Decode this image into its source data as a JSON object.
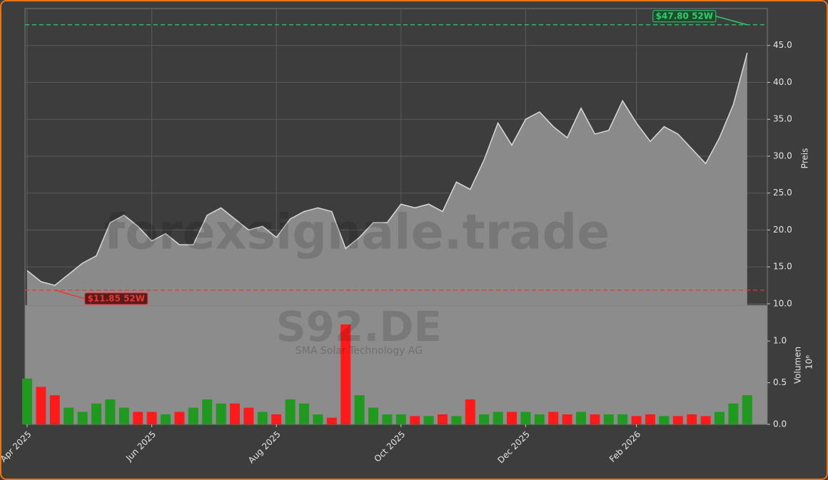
{
  "chart_data": {
    "type": "stock",
    "watermark": "forexsignale.trade",
    "symbol": "S92.DE",
    "company": "SMA Solar Technology AG",
    "y_label": "Preis",
    "y2_label": "Volumen",
    "y2_multiplier": "10⁶",
    "categories": [
      "Apr 2025",
      null,
      null,
      null,
      null,
      null,
      null,
      null,
      null,
      "Jun 2025",
      null,
      null,
      null,
      null,
      null,
      null,
      null,
      null,
      "Aug 2025",
      null,
      null,
      null,
      null,
      null,
      null,
      null,
      null,
      "Oct 2025",
      null,
      null,
      null,
      null,
      null,
      null,
      null,
      null,
      "Dec 2025",
      null,
      null,
      null,
      null,
      null,
      null,
      null,
      "Feb 2026",
      null,
      null,
      null,
      null,
      null,
      null,
      null,
      null
    ],
    "series": [
      {
        "name": "Preis",
        "color": "#d9d9d9",
        "fill": "#8a8a8a",
        "values": [
          14.5,
          13.0,
          12.5,
          14.0,
          15.5,
          16.5,
          21.0,
          22.0,
          20.5,
          18.5,
          19.5,
          18.0,
          18.0,
          22.0,
          23.0,
          21.5,
          20.0,
          20.5,
          19.0,
          21.5,
          22.5,
          23.0,
          22.5,
          17.5,
          19.0,
          21.0,
          21.0,
          23.5,
          23.0,
          23.5,
          22.5,
          26.5,
          25.5,
          29.5,
          34.5,
          31.5,
          35.0,
          36.0,
          34.0,
          32.5,
          36.5,
          33.0,
          33.5,
          37.5,
          34.5,
          32.0,
          34.0,
          33.0,
          31.0,
          29.0,
          32.5,
          37.0,
          44.0
        ]
      },
      {
        "name": "Volumen",
        "axis": "y2",
        "up_color": "#1f9a1f",
        "down_color": "#ff1a1a",
        "values": [
          0.55,
          0.45,
          0.35,
          0.2,
          0.15,
          0.25,
          0.3,
          0.2,
          0.15,
          0.15,
          0.12,
          0.15,
          0.2,
          0.3,
          0.25,
          0.25,
          0.2,
          0.15,
          0.12,
          0.3,
          0.25,
          0.12,
          0.08,
          1.2,
          0.35,
          0.2,
          0.12,
          0.12,
          0.1,
          0.1,
          0.12,
          0.1,
          0.3,
          0.12,
          0.15,
          0.15,
          0.15,
          0.12,
          0.15,
          0.12,
          0.15,
          0.12,
          0.12,
          0.12,
          0.1,
          0.12,
          0.1,
          0.1,
          0.12,
          0.1,
          0.15,
          0.25,
          0.35
        ]
      }
    ],
    "hlines": [
      {
        "value": 47.8,
        "label": "$47.80 52W",
        "color": "#2ecc71"
      },
      {
        "value": 11.85,
        "label": "$11.85 52W",
        "color": "#e53935"
      }
    ],
    "ylim": [
      9.8,
      50.0
    ],
    "yticks": [
      {
        "value": 10,
        "label": "10.0"
      },
      {
        "value": 15,
        "label": "15.0"
      },
      {
        "value": 20,
        "label": "20.0"
      },
      {
        "value": 25,
        "label": "25.0"
      },
      {
        "value": 30,
        "label": "30.0"
      },
      {
        "value": 35,
        "label": "35.0"
      },
      {
        "value": 40,
        "label": "40.0"
      },
      {
        "value": 45,
        "label": "45.0"
      }
    ],
    "y2lim": [
      0,
      1.43
    ],
    "y2ticks": [
      {
        "value": 0,
        "label": "0.0"
      },
      {
        "value": 0.5,
        "label": "0.5"
      },
      {
        "value": 1.0,
        "label": "1.0"
      }
    ],
    "grid": true
  }
}
